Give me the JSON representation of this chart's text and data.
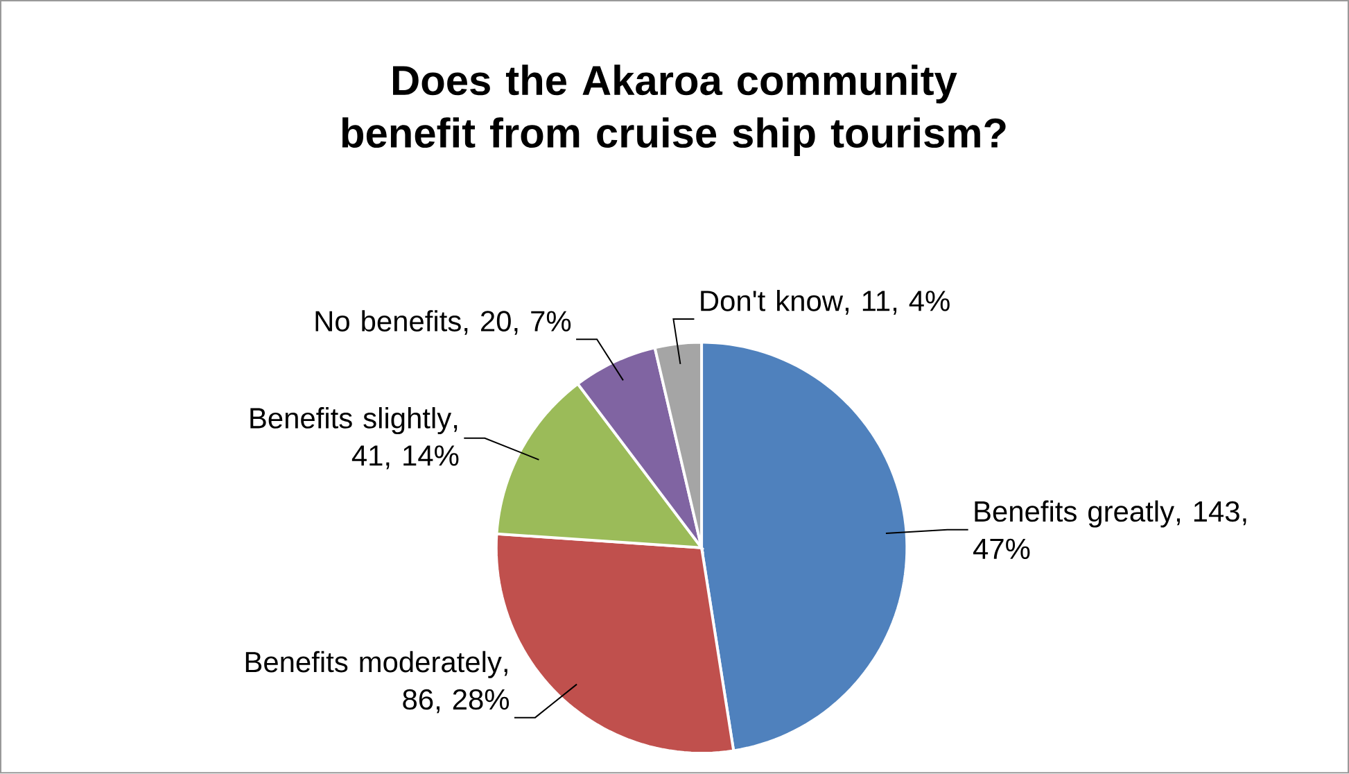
{
  "chart_data": {
    "type": "pie",
    "title": "Does the Akaroa community benefit from cruise ship tourism?",
    "categories": [
      "Benefits greatly",
      "Benefits moderately",
      "Benefits slightly",
      "No benefits",
      "Don't know"
    ],
    "values": [
      143,
      86,
      41,
      20,
      11
    ],
    "value_labels": [
      ", 143, 47%",
      ", 86, 28%",
      ", 41, 14%",
      ", 20, 7%",
      ", 11, 4%"
    ],
    "colors": [
      "#4f81bd",
      "#c0504d",
      "#9bbb59",
      "#8064a2",
      "#a5a5a5"
    ]
  }
}
